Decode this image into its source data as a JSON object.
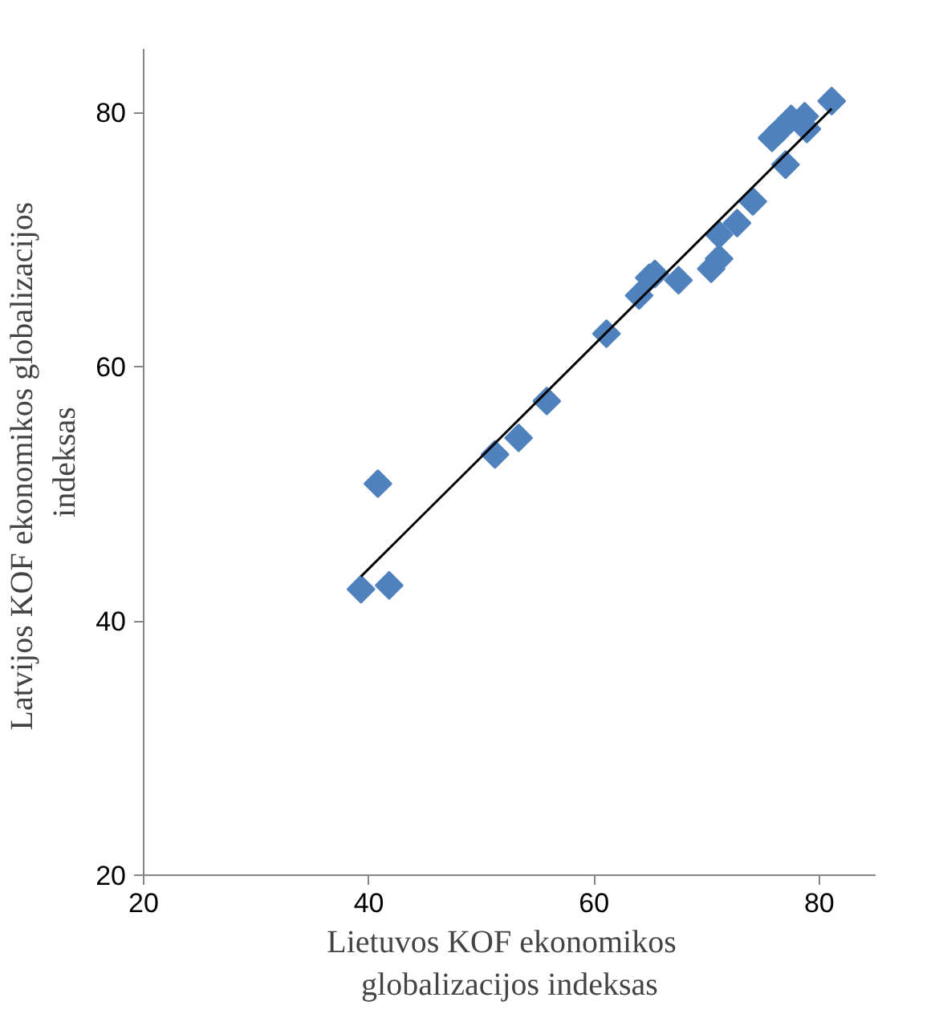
{
  "chart_data": {
    "type": "scatter",
    "xlabel": "Lietuvos  KOF  ekonomikos\nglobalizacijos indeksas",
    "ylabel": "Latvijos KOF  ekonomikos globalizacijos\nindeksas",
    "xlim": [
      20,
      85
    ],
    "ylim": [
      20,
      85
    ],
    "xticks": [
      20,
      40,
      60,
      80
    ],
    "yticks": [
      20,
      40,
      60,
      80
    ],
    "grid": false,
    "series": [
      {
        "marker": "diamond",
        "color": "#4f81bd",
        "x": [
          39.3,
          40.8,
          41.8,
          51.2,
          53.3,
          55.8,
          61.1,
          64.0,
          64.9,
          65.4,
          67.5,
          70.4,
          71.1,
          71.1,
          72.7,
          74.1,
          77.0,
          75.8,
          76.6,
          77.5,
          78.7,
          78.9,
          81.1
        ],
        "values": [
          42.5,
          50.8,
          42.8,
          53.1,
          54.4,
          57.3,
          62.6,
          65.6,
          67.0,
          67.3,
          66.8,
          67.7,
          68.5,
          70.4,
          71.3,
          73.0,
          75.9,
          78.0,
          78.7,
          79.5,
          79.7,
          78.7,
          80.9
        ]
      },
      {
        "type": "line",
        "color": "#000000",
        "x": [
          39.3,
          81.1
        ],
        "values": [
          43.5,
          80.3
        ]
      }
    ]
  }
}
